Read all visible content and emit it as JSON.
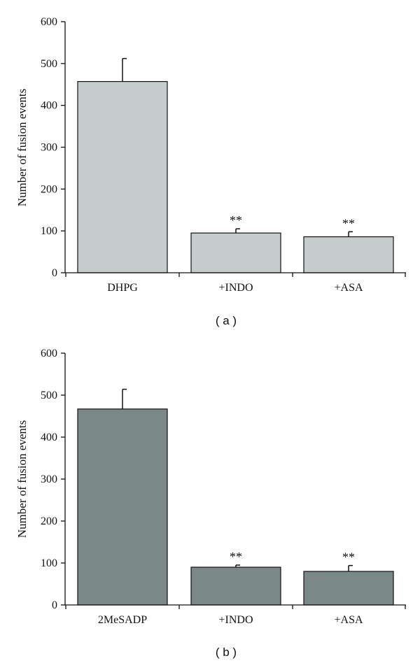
{
  "chart_data": [
    {
      "panel": "( a )",
      "type": "bar",
      "categories": [
        "DHPG",
        "+INDO",
        "+ASA"
      ],
      "values": [
        457,
        95,
        86
      ],
      "errors": [
        55,
        10,
        12
      ],
      "significance": [
        "",
        "**",
        "**"
      ],
      "xlabel": "",
      "ylabel": "Number of fusion events",
      "ylim": [
        0,
        600
      ],
      "yticks": [
        "0",
        "100",
        "200",
        "300",
        "400",
        "500",
        "600"
      ],
      "bar_color": "#c5cccb",
      "grid": false
    },
    {
      "panel": "( b )",
      "type": "bar",
      "categories": [
        "2MeSADP",
        "+INDO",
        "+ASA"
      ],
      "values": [
        467,
        90,
        80
      ],
      "errors": [
        47,
        5,
        14
      ],
      "significance": [
        "",
        "**",
        "**"
      ],
      "xlabel": "",
      "ylabel": "Number of fusion events",
      "ylim": [
        0,
        600
      ],
      "yticks": [
        "0",
        "100",
        "200",
        "300",
        "400",
        "500",
        "600"
      ],
      "bar_color": "#7a8888",
      "grid": false
    }
  ]
}
